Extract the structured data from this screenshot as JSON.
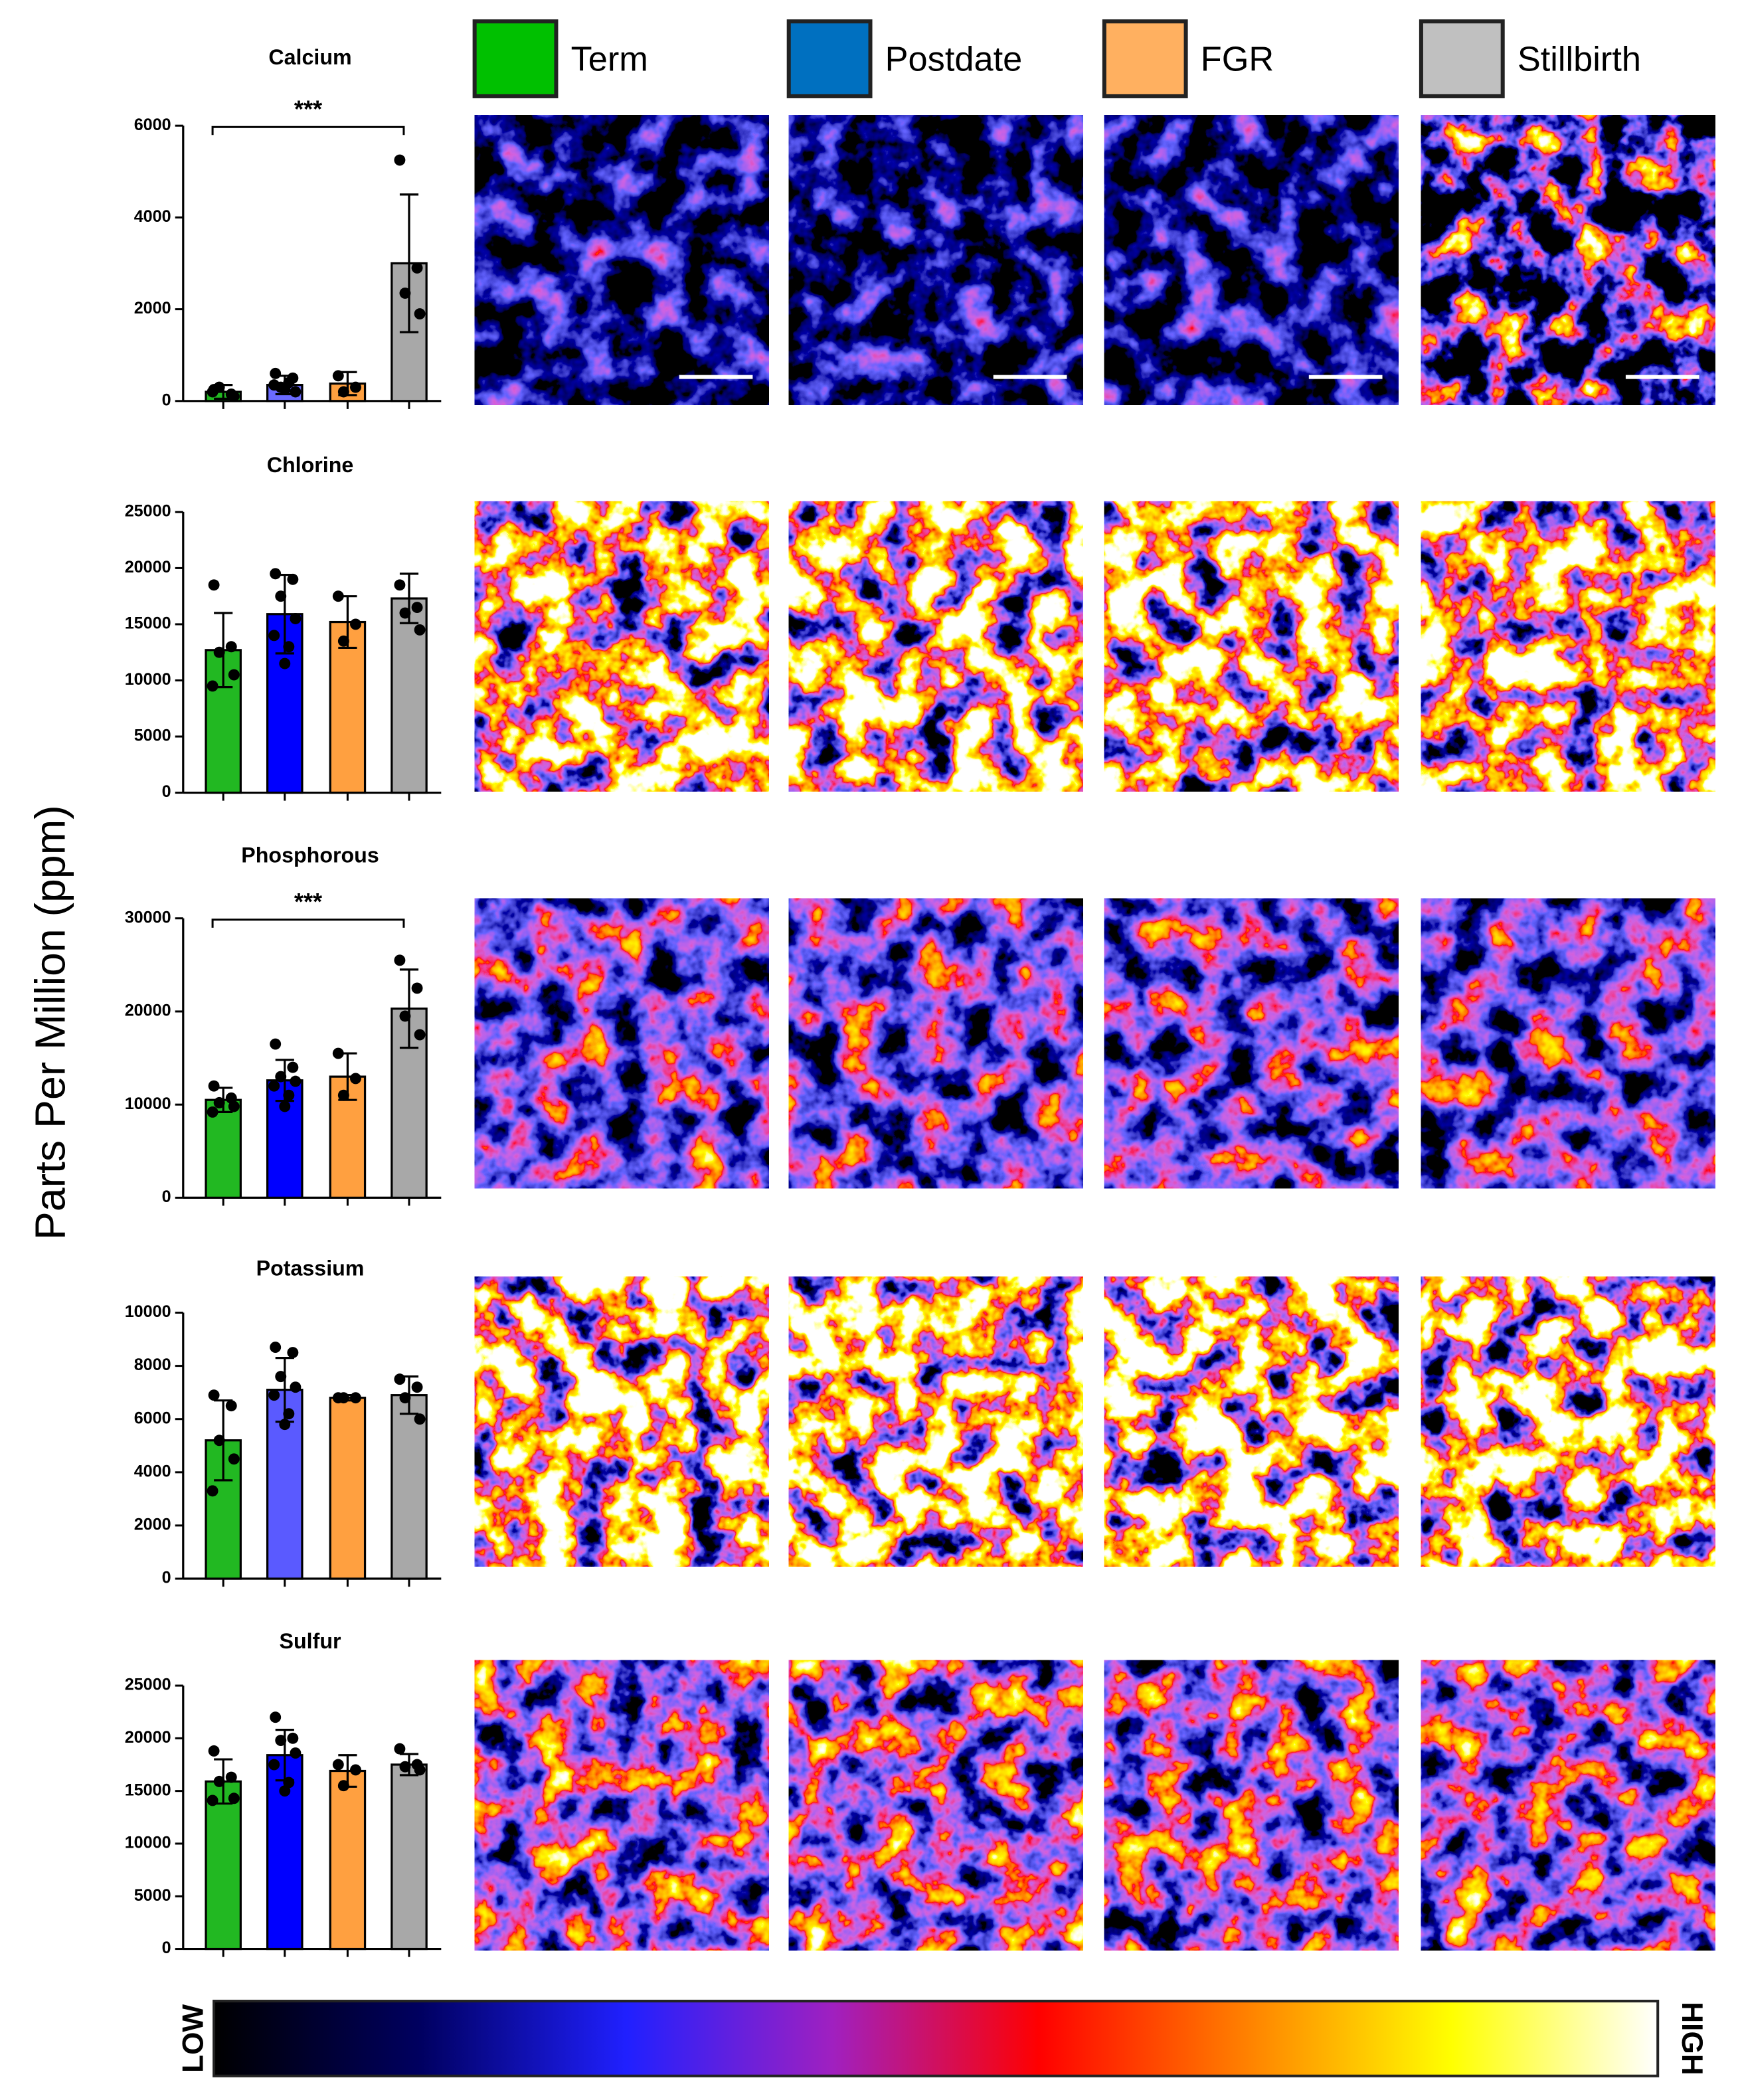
{
  "legend": [
    {
      "name": "Term",
      "color": "#00c000"
    },
    {
      "name": "Postdate",
      "color": "#0070c0"
    },
    {
      "name": "FGR",
      "color": "#ffb060"
    },
    {
      "name": "Stillbirth",
      "color": "#c0c0c0"
    }
  ],
  "y_label": "Parts Per Million (ppm)",
  "colorbar": {
    "low": "LOW",
    "high": "HIGH",
    "colors": [
      "#000000",
      "#000060",
      "#2020ff",
      "#a020c0",
      "#ff0000",
      "#ff8000",
      "#ffff00",
      "#ffffff"
    ]
  },
  "chart_data": [
    {
      "type": "bar",
      "title": "Calcium",
      "annotation": "***",
      "categories": [
        null,
        null,
        null,
        null
      ],
      "values": [
        200,
        350,
        380,
        3000
      ],
      "errors": [
        150,
        200,
        250,
        1500
      ],
      "points": [
        [
          250,
          150,
          300,
          100,
          200
        ],
        [
          600,
          500,
          300,
          200,
          350,
          400,
          250
        ],
        [
          550,
          300,
          200
        ],
        [
          5250,
          2900,
          2350,
          1900
        ]
      ],
      "colors": [
        "#22b822",
        "#6a6aff",
        "#ffa040",
        "#a8a8a8"
      ],
      "ylim": [
        0,
        6000
      ],
      "yticks": [
        0,
        2000,
        4000,
        6000
      ]
    },
    {
      "type": "bar",
      "title": "Chlorine",
      "categories": [
        null,
        null,
        null,
        null
      ],
      "values": [
        12700,
        15900,
        15200,
        17300
      ],
      "errors": [
        3300,
        3500,
        2300,
        2200
      ],
      "points": [
        [
          18500,
          13000,
          12500,
          10500,
          9500
        ],
        [
          19500,
          19000,
          17500,
          15500,
          14000,
          13000,
          11500
        ],
        [
          17500,
          15000,
          13500
        ],
        [
          18500,
          16500,
          16000,
          14500
        ]
      ],
      "colors": [
        "#22b822",
        "#0000ff",
        "#ffa040",
        "#a8a8a8"
      ],
      "ylim": [
        0,
        25000
      ],
      "yticks": [
        0,
        5000,
        10000,
        15000,
        20000,
        25000
      ]
    },
    {
      "type": "bar",
      "title": "Phosphorous",
      "annotation": "***",
      "categories": [
        null,
        null,
        null,
        null
      ],
      "values": [
        10500,
        12600,
        13000,
        20300
      ],
      "errors": [
        1300,
        2200,
        2500,
        4200
      ],
      "points": [
        [
          12000,
          10700,
          10200,
          9800,
          9200
        ],
        [
          16500,
          14000,
          13000,
          12500,
          12000,
          11000,
          9800
        ],
        [
          15500,
          12800,
          11000
        ],
        [
          25500,
          22500,
          19500,
          17500
        ]
      ],
      "colors": [
        "#22b822",
        "#0000ff",
        "#ffa040",
        "#a8a8a8"
      ],
      "ylim": [
        0,
        30000
      ],
      "yticks": [
        0,
        10000,
        20000,
        30000
      ]
    },
    {
      "type": "bar",
      "title": "Potassium",
      "categories": [
        null,
        null,
        null,
        null
      ],
      "values": [
        5200,
        7100,
        6800,
        6900
      ],
      "errors": [
        1500,
        1200,
        100,
        700
      ],
      "points": [
        [
          6900,
          6500,
          5200,
          4500,
          3300
        ],
        [
          8700,
          8500,
          7600,
          7200,
          6900,
          6200,
          5800
        ],
        [
          6800,
          6800,
          6800
        ],
        [
          7500,
          7200,
          6800,
          6000
        ]
      ],
      "colors": [
        "#22b822",
        "#5a5aff",
        "#ffa040",
        "#a8a8a8"
      ],
      "ylim": [
        0,
        10000
      ],
      "yticks": [
        0,
        2000,
        4000,
        6000,
        8000,
        10000
      ]
    },
    {
      "type": "bar",
      "title": "Sulfur",
      "categories": [
        null,
        null,
        null,
        null
      ],
      "values": [
        15900,
        18400,
        16900,
        17500
      ],
      "errors": [
        2100,
        2400,
        1500,
        1000
      ],
      "points": [
        [
          18800,
          16300,
          15900,
          14300,
          14100
        ],
        [
          22000,
          20000,
          19800,
          18600,
          17500,
          15800,
          15000
        ],
        [
          17500,
          17000,
          15500
        ],
        [
          19000,
          17500,
          17300,
          17000
        ]
      ],
      "colors": [
        "#22b822",
        "#0000ff",
        "#ffa040",
        "#a8a8a8"
      ],
      "ylim": [
        0,
        25000
      ],
      "yticks": [
        0,
        5000,
        10000,
        15000,
        20000,
        25000
      ]
    }
  ]
}
